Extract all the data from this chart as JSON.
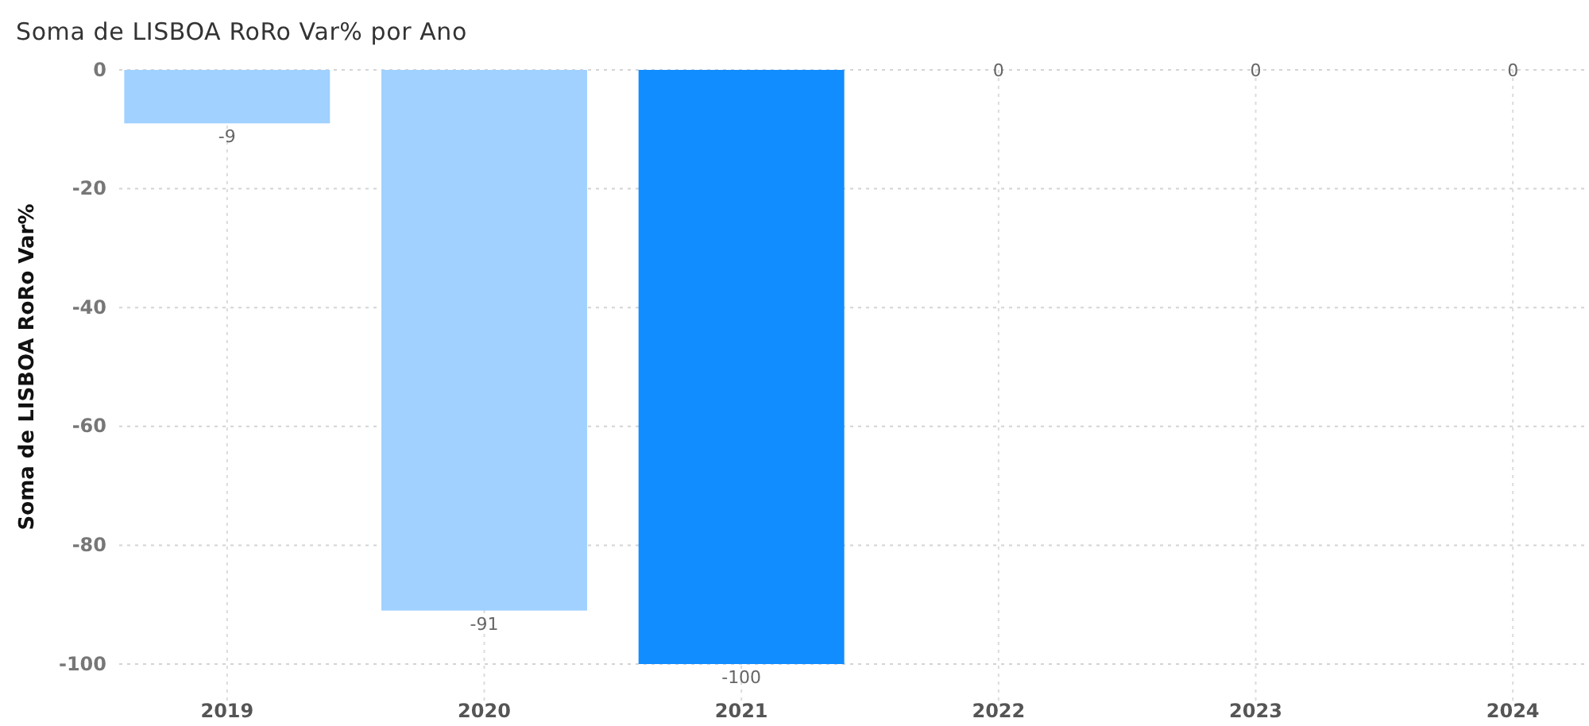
{
  "chart_data": {
    "type": "bar",
    "title": "Soma de LISBOA RoRo Var% por Ano",
    "ylabel": "Soma de LISBOA RoRo Var%",
    "categories": [
      "2019",
      "2020",
      "2021",
      "2022",
      "2023",
      "2024"
    ],
    "values": [
      -9,
      -91,
      -100,
      0,
      0,
      0
    ],
    "colors": [
      "#a0d1ff",
      "#a0d1ff",
      "#118dff",
      "#a0d1ff",
      "#a0d1ff",
      "#a0d1ff"
    ],
    "ylim": [
      -100,
      0
    ],
    "yticks": [
      0,
      -20,
      -40,
      -60,
      -80,
      -100
    ],
    "grid": true,
    "data_labels": true
  }
}
